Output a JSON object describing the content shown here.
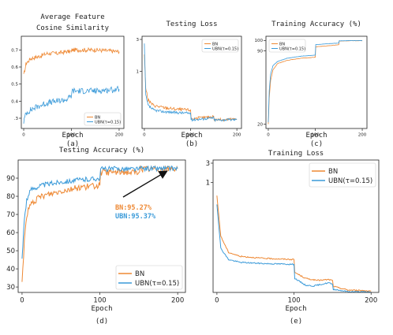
{
  "colors": {
    "bn": "#ee8833",
    "ubn": "#3a9ad9",
    "axis": "#222222"
  },
  "chart_data": [
    {
      "id": "a",
      "type": "line",
      "title": "Average Feature Cosine Similarity",
      "xlabel": "Epoch",
      "ylabel": "",
      "caption": "(a)",
      "xlim": [
        -5,
        210
      ],
      "ylim": [
        0.24,
        0.78
      ],
      "xticks": [
        0,
        100,
        200
      ],
      "yticks": [
        0.3,
        0.4,
        0.5,
        0.6,
        0.7
      ],
      "ytick_labels": [
        ".3",
        "0.4",
        "0.5",
        "0.6",
        "0.7"
      ],
      "legend": {
        "position": "lower-right",
        "entries": [
          "BN",
          "UBN(τ=0.15)"
        ]
      },
      "series": [
        {
          "name": "BN",
          "color": "bn",
          "points": [
            [
              0,
              0.55
            ],
            [
              5,
              0.62
            ],
            [
              15,
              0.65
            ],
            [
              30,
              0.66
            ],
            [
              50,
              0.68
            ],
            [
              70,
              0.68
            ],
            [
              90,
              0.69
            ],
            [
              100,
              0.69
            ],
            [
              101,
              0.7
            ],
            [
              120,
              0.7
            ],
            [
              150,
              0.7
            ],
            [
              200,
              0.69
            ]
          ]
        },
        {
          "name": "UBN(τ=0.15)",
          "color": "ubn",
          "points": [
            [
              0,
              0.28
            ],
            [
              5,
              0.33
            ],
            [
              15,
              0.35
            ],
            [
              30,
              0.37
            ],
            [
              50,
              0.39
            ],
            [
              70,
              0.4
            ],
            [
              90,
              0.41
            ],
            [
              100,
              0.43
            ],
            [
              101,
              0.46
            ],
            [
              120,
              0.46
            ],
            [
              150,
              0.46
            ],
            [
              200,
              0.47
            ]
          ]
        }
      ]
    },
    {
      "id": "b",
      "type": "line",
      "title": "Testing Loss",
      "xlabel": "Epoch",
      "ylabel": "",
      "caption": "(b)",
      "xlim": [
        -5,
        210
      ],
      "ylim": [
        0,
        3.6
      ],
      "yscale": "log-like",
      "xticks": [
        0,
        100,
        200
      ],
      "yticks": [
        1,
        3
      ],
      "ytick_labels": [
        "1",
        "3"
      ],
      "legend": {
        "position": "upper-right",
        "entries": [
          "BN",
          "UBN(τ=0.15)"
        ]
      },
      "series": [
        {
          "name": "BN",
          "color": "bn",
          "points": [
            [
              0,
              2.9
            ],
            [
              3,
              1.6
            ],
            [
              8,
              1.1
            ],
            [
              20,
              0.9
            ],
            [
              40,
              0.82
            ],
            [
              70,
              0.75
            ],
            [
              100,
              0.72
            ],
            [
              101,
              0.38
            ],
            [
              130,
              0.42
            ],
            [
              150,
              0.48
            ],
            [
              151,
              0.34
            ],
            [
              200,
              0.36
            ]
          ]
        },
        {
          "name": "UBN(τ=0.15)",
          "color": "ubn",
          "points": [
            [
              0,
              3.3
            ],
            [
              3,
              1.3
            ],
            [
              8,
              0.9
            ],
            [
              20,
              0.72
            ],
            [
              40,
              0.66
            ],
            [
              70,
              0.62
            ],
            [
              100,
              0.6
            ],
            [
              101,
              0.34
            ],
            [
              130,
              0.38
            ],
            [
              150,
              0.42
            ],
            [
              151,
              0.33
            ],
            [
              200,
              0.35
            ]
          ]
        }
      ]
    },
    {
      "id": "c",
      "type": "line",
      "title": "Training Accuracy (%)",
      "xlabel": "Epoch",
      "ylabel": "",
      "caption": "(c)",
      "xlim": [
        -5,
        210
      ],
      "ylim": [
        16,
        104
      ],
      "xticks": [
        0,
        100,
        200
      ],
      "yticks": [
        20,
        90,
        100
      ],
      "ytick_labels": [
        "20",
        "90",
        "100"
      ],
      "legend": {
        "position": "upper-left",
        "entries": [
          "BN",
          "UBN(τ=0.15)"
        ]
      },
      "series": [
        {
          "name": "BN",
          "color": "bn",
          "points": [
            [
              0,
              20
            ],
            [
              2,
              45
            ],
            [
              5,
              62
            ],
            [
              10,
              72
            ],
            [
              20,
              78
            ],
            [
              40,
              81
            ],
            [
              70,
              83
            ],
            [
              100,
              84
            ],
            [
              101,
              94
            ],
            [
              130,
              95
            ],
            [
              150,
              96
            ],
            [
              151,
              99.5
            ],
            [
              200,
              99.8
            ]
          ]
        },
        {
          "name": "UBN(τ=0.15)",
          "color": "ubn",
          "points": [
            [
              0,
              22
            ],
            [
              2,
              52
            ],
            [
              5,
              68
            ],
            [
              10,
              76
            ],
            [
              20,
              80
            ],
            [
              40,
              83
            ],
            [
              70,
              85
            ],
            [
              100,
              86
            ],
            [
              101,
              96
            ],
            [
              130,
              97
            ],
            [
              150,
              97.5
            ],
            [
              151,
              99.7
            ],
            [
              200,
              99.9
            ]
          ]
        }
      ]
    },
    {
      "id": "d",
      "type": "line",
      "title": "Testing Accuracy (%)",
      "xlabel": "Epoch",
      "ylabel": "",
      "caption": "(d)",
      "xlim": [
        -5,
        210
      ],
      "ylim": [
        27,
        100
      ],
      "xticks": [
        0,
        100,
        200
      ],
      "yticks": [
        30,
        40,
        50,
        60,
        70,
        80,
        90
      ],
      "ytick_labels": [
        "30",
        "40",
        "50",
        "60",
        "70",
        "80",
        "90"
      ],
      "legend": {
        "position": "lower-right",
        "entries": [
          "BN",
          "UBN(τ=0.15)"
        ]
      },
      "annotations": [
        {
          "text": "BN:95.27%",
          "color": "bn"
        },
        {
          "text": "UBN:95.37%",
          "color": "ubn"
        }
      ],
      "series": [
        {
          "name": "BN",
          "color": "bn",
          "points": [
            [
              0,
              33
            ],
            [
              3,
              55
            ],
            [
              6,
              70
            ],
            [
              12,
              76
            ],
            [
              25,
              80
            ],
            [
              50,
              83
            ],
            [
              75,
              85
            ],
            [
              100,
              86
            ],
            [
              101,
              93
            ],
            [
              130,
              93.5
            ],
            [
              150,
              93
            ],
            [
              151,
              95
            ],
            [
              200,
              95.27
            ]
          ]
        },
        {
          "name": "UBN(τ=0.15)",
          "color": "ubn",
          "points": [
            [
              0,
              45
            ],
            [
              3,
              68
            ],
            [
              6,
              78
            ],
            [
              12,
              84
            ],
            [
              25,
              86
            ],
            [
              50,
              88
            ],
            [
              75,
              89
            ],
            [
              100,
              90
            ],
            [
              101,
              95
            ],
            [
              130,
              95.2
            ],
            [
              150,
              95
            ],
            [
              151,
              95.3
            ],
            [
              200,
              95.37
            ]
          ]
        }
      ]
    },
    {
      "id": "e",
      "type": "line",
      "title": "Training Loss",
      "xlabel": "Epoch",
      "ylabel": "",
      "caption": "(e)",
      "xlim": [
        -5,
        210
      ],
      "ylim": [
        0,
        3.3
      ],
      "yscale": "log-like",
      "xticks": [
        0,
        100,
        200
      ],
      "yticks": [
        1,
        3
      ],
      "ytick_labels": [
        "1",
        "3"
      ],
      "legend": {
        "position": "upper-right",
        "entries": [
          "BN",
          "UBN(τ=0.15)"
        ]
      },
      "series": [
        {
          "name": "BN",
          "color": "bn",
          "points": [
            [
              0,
              2.4
            ],
            [
              5,
              1.4
            ],
            [
              15,
              1.0
            ],
            [
              30,
              0.9
            ],
            [
              60,
              0.85
            ],
            [
              100,
              0.82
            ],
            [
              101,
              0.5
            ],
            [
              115,
              0.35
            ],
            [
              130,
              0.3
            ],
            [
              145,
              0.32
            ],
            [
              150,
              0.3
            ],
            [
              151,
              0.15
            ],
            [
              170,
              0.06
            ],
            [
              200,
              0.04
            ]
          ]
        },
        {
          "name": "UBN(τ=0.15)",
          "color": "ubn",
          "points": [
            [
              0,
              2.2
            ],
            [
              5,
              1.1
            ],
            [
              15,
              0.82
            ],
            [
              30,
              0.75
            ],
            [
              60,
              0.72
            ],
            [
              100,
              0.7
            ],
            [
              101,
              0.35
            ],
            [
              115,
              0.18
            ],
            [
              125,
              0.16
            ],
            [
              140,
              0.22
            ],
            [
              145,
              0.24
            ],
            [
              150,
              0.2
            ],
            [
              151,
              0.08
            ],
            [
              170,
              0.02
            ],
            [
              200,
              0.01
            ]
          ]
        }
      ]
    }
  ]
}
